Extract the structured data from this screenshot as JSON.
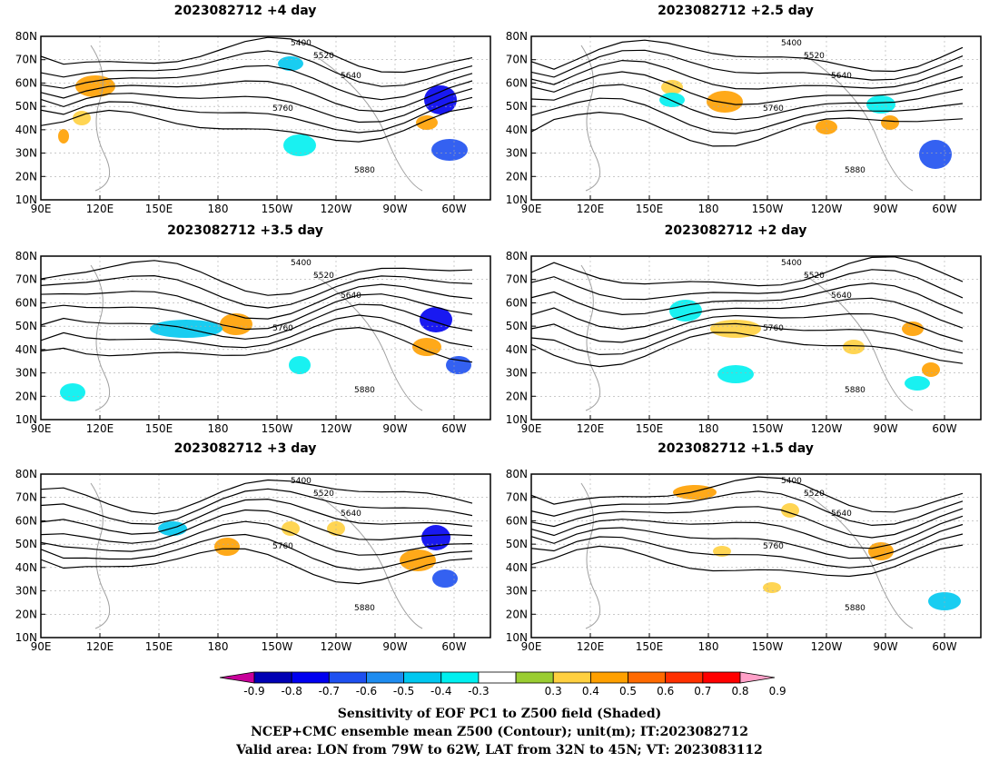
{
  "panels": [
    {
      "title": "2023082712  +4 day"
    },
    {
      "title": "2023082712  +2.5  day"
    },
    {
      "title": "2023082712  +3.5  day"
    },
    {
      "title": "2023082712  +2  day"
    },
    {
      "title": "2023082712  +3  day"
    },
    {
      "title": "2023082712  +1.5  day"
    }
  ],
  "axes": {
    "lat_ticks": [
      "10N",
      "20N",
      "30N",
      "40N",
      "50N",
      "60N",
      "70N",
      "80N"
    ],
    "lon_ticks": [
      "90E",
      "120E",
      "150E",
      "180",
      "150W",
      "120W",
      "90W",
      "60W"
    ]
  },
  "contour_labels": [
    "5400",
    "5520",
    "5640",
    "5760",
    "5880"
  ],
  "colorbar": {
    "ticks": [
      "-0.9",
      "-0.8",
      "-0.7",
      "-0.6",
      "-0.5",
      "-0.4",
      "-0.3",
      "0.3",
      "0.4",
      "0.5",
      "0.6",
      "0.7",
      "0.8",
      "0.9"
    ],
    "colors": [
      "#c8009a",
      "#0000b4",
      "#0000f0",
      "#1e50f0",
      "#1e8cf0",
      "#00c8f0",
      "#00f0f0",
      "#ffffff",
      "#9acd32",
      "#ffd040",
      "#ffa000",
      "#ff6a00",
      "#ff3000",
      "#ff0000",
      "#ffa0c8"
    ]
  },
  "captions": {
    "line1": "Sensitivity of EOF PC1 to Z500 field (Shaded)",
    "line2": "NCEP+CMC ensemble mean Z500 (Contour); unit(m); IT:2023082712",
    "line3": "Valid area: LON from 79W to 62W, LAT from 32N to 45N; VT: 2023083112"
  }
}
